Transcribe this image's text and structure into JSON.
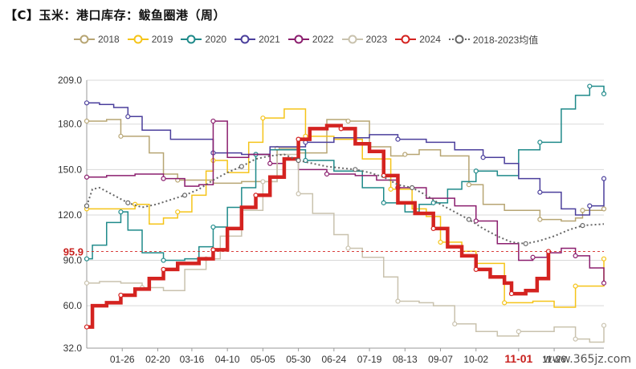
{
  "title": "【C】玉米：港口库存：鲅鱼圈港（周）",
  "watermark": "www.365jz.com",
  "chart_data": {
    "type": "line",
    "title": "【C】玉米：港口库存：鲅鱼圈港（周）",
    "xlabel": "",
    "ylabel": "",
    "ylim": [
      32.0,
      209.0
    ],
    "yticks": [
      "209.0",
      "180.0",
      "150.0",
      "120.0",
      "90.0",
      "60.0",
      "32.0"
    ],
    "ytick_values": [
      209,
      180,
      150,
      120,
      90,
      60,
      32
    ],
    "xticks": [
      "01-26",
      "02-20",
      "03-16",
      "04-10",
      "05-05",
      "05-30",
      "06-24",
      "07-19",
      "08-13",
      "09-07",
      "10-02",
      "11-01",
      "11-26"
    ],
    "highlight_xtick": "11-01",
    "last_value_label": "95.9",
    "last_value": 95.9,
    "grid": true,
    "legend_position": "top",
    "x_start": "01-01",
    "x_end": "12-31",
    "series": [
      {
        "name": "2018",
        "color": "#b7a573",
        "style": "step",
        "values": [
          [
            1,
            182
          ],
          [
            5,
            182
          ],
          [
            15,
            183
          ],
          [
            25,
            172
          ],
          [
            45,
            161
          ],
          [
            55,
            147
          ],
          [
            65,
            143
          ],
          [
            90,
            141
          ],
          [
            110,
            142
          ],
          [
            135,
            164
          ],
          [
            150,
            161
          ],
          [
            170,
            183
          ],
          [
            185,
            182
          ],
          [
            200,
            165
          ],
          [
            215,
            159
          ],
          [
            225,
            160
          ],
          [
            235,
            163
          ],
          [
            250,
            159
          ],
          [
            270,
            140
          ],
          [
            280,
            127
          ],
          [
            295,
            123
          ],
          [
            320,
            117
          ],
          [
            335,
            116
          ],
          [
            345,
            118
          ],
          [
            350,
            123
          ],
          [
            365,
            124
          ]
        ]
      },
      {
        "name": "2019",
        "color": "#f5c419",
        "style": "step",
        "values": [
          [
            1,
            124
          ],
          [
            10,
            124
          ],
          [
            25,
            124
          ],
          [
            35,
            127
          ],
          [
            45,
            114
          ],
          [
            55,
            118
          ],
          [
            65,
            122
          ],
          [
            75,
            133
          ],
          [
            85,
            149
          ],
          [
            90,
            156
          ],
          [
            100,
            148
          ],
          [
            115,
            168
          ],
          [
            125,
            184
          ],
          [
            140,
            190
          ],
          [
            148,
            190
          ],
          [
            155,
            172
          ],
          [
            175,
            170
          ],
          [
            195,
            157
          ],
          [
            215,
            137
          ],
          [
            230,
            124
          ],
          [
            240,
            119
          ],
          [
            250,
            102
          ],
          [
            265,
            96
          ],
          [
            275,
            88
          ],
          [
            295,
            62
          ],
          [
            315,
            63
          ],
          [
            330,
            59
          ],
          [
            345,
            73
          ],
          [
            365,
            91
          ]
        ]
      },
      {
        "name": "2020",
        "color": "#1f8a8a",
        "style": "step",
        "values": [
          [
            1,
            91
          ],
          [
            5,
            100
          ],
          [
            15,
            115
          ],
          [
            25,
            122
          ],
          [
            30,
            110
          ],
          [
            40,
            95
          ],
          [
            55,
            90
          ],
          [
            70,
            91
          ],
          [
            80,
            99
          ],
          [
            90,
            112
          ],
          [
            100,
            125
          ],
          [
            110,
            138
          ],
          [
            120,
            160
          ],
          [
            130,
            163
          ],
          [
            145,
            163
          ],
          [
            155,
            156
          ],
          [
            175,
            149
          ],
          [
            195,
            138
          ],
          [
            210,
            128
          ],
          [
            225,
            122
          ],
          [
            235,
            127
          ],
          [
            245,
            128
          ],
          [
            255,
            137
          ],
          [
            265,
            142
          ],
          [
            275,
            149
          ],
          [
            290,
            146
          ],
          [
            305,
            163
          ],
          [
            320,
            168
          ],
          [
            335,
            190
          ],
          [
            345,
            199
          ],
          [
            355,
            205
          ],
          [
            365,
            200
          ]
        ]
      },
      {
        "name": "2021",
        "color": "#4b3f9c",
        "style": "step",
        "values": [
          [
            1,
            194
          ],
          [
            10,
            193
          ],
          [
            20,
            191
          ],
          [
            30,
            185
          ],
          [
            40,
            176
          ],
          [
            60,
            170
          ],
          [
            90,
            161
          ],
          [
            110,
            160
          ],
          [
            130,
            165
          ],
          [
            155,
            168
          ],
          [
            175,
            171
          ],
          [
            200,
            173
          ],
          [
            220,
            170
          ],
          [
            240,
            168
          ],
          [
            260,
            163
          ],
          [
            280,
            158
          ],
          [
            295,
            154
          ],
          [
            305,
            144
          ],
          [
            320,
            135
          ],
          [
            335,
            124
          ],
          [
            345,
            120
          ],
          [
            355,
            126
          ],
          [
            365,
            144
          ]
        ]
      },
      {
        "name": "2022",
        "color": "#8b1e6e",
        "style": "step",
        "values": [
          [
            1,
            145
          ],
          [
            15,
            146
          ],
          [
            35,
            147
          ],
          [
            55,
            144
          ],
          [
            70,
            139
          ],
          [
            80,
            140
          ],
          [
            90,
            182
          ],
          [
            100,
            158
          ],
          [
            115,
            160
          ],
          [
            130,
            154
          ],
          [
            140,
            157
          ],
          [
            150,
            150
          ],
          [
            170,
            147
          ],
          [
            190,
            146
          ],
          [
            205,
            143
          ],
          [
            220,
            138
          ],
          [
            240,
            131
          ],
          [
            260,
            126
          ],
          [
            275,
            116
          ],
          [
            290,
            101
          ],
          [
            305,
            90
          ],
          [
            315,
            92
          ],
          [
            325,
            95
          ],
          [
            335,
            98
          ],
          [
            345,
            93
          ],
          [
            355,
            85
          ],
          [
            365,
            75
          ]
        ]
      },
      {
        "name": "2023",
        "color": "#c9c2ae",
        "style": "step",
        "values": [
          [
            1,
            75
          ],
          [
            10,
            76
          ],
          [
            25,
            75
          ],
          [
            40,
            72
          ],
          [
            55,
            70
          ],
          [
            70,
            84
          ],
          [
            85,
            91
          ],
          [
            95,
            106
          ],
          [
            110,
            123
          ],
          [
            125,
            142
          ],
          [
            135,
            160
          ],
          [
            145,
            160
          ],
          [
            150,
            134
          ],
          [
            160,
            121
          ],
          [
            175,
            107
          ],
          [
            185,
            98
          ],
          [
            195,
            92
          ],
          [
            210,
            79
          ],
          [
            220,
            63
          ],
          [
            235,
            62
          ],
          [
            245,
            60
          ],
          [
            260,
            48
          ],
          [
            275,
            43
          ],
          [
            290,
            40
          ],
          [
            305,
            43
          ],
          [
            320,
            43
          ],
          [
            330,
            46
          ],
          [
            345,
            38
          ],
          [
            355,
            36
          ],
          [
            365,
            47
          ]
        ]
      },
      {
        "name": "2024",
        "color": "#d42320",
        "style": "step",
        "bold": true,
        "values": [
          [
            1,
            46
          ],
          [
            5,
            60
          ],
          [
            15,
            62
          ],
          [
            25,
            67
          ],
          [
            35,
            71
          ],
          [
            45,
            78
          ],
          [
            55,
            84
          ],
          [
            65,
            88
          ],
          [
            80,
            91
          ],
          [
            90,
            97
          ],
          [
            100,
            111
          ],
          [
            110,
            125
          ],
          [
            120,
            133
          ],
          [
            130,
            145
          ],
          [
            140,
            157
          ],
          [
            150,
            170
          ],
          [
            158,
            177
          ],
          [
            170,
            179
          ],
          [
            180,
            177
          ],
          [
            190,
            167
          ],
          [
            200,
            162
          ],
          [
            210,
            146
          ],
          [
            220,
            128
          ],
          [
            232,
            121
          ],
          [
            245,
            111
          ],
          [
            255,
            99
          ],
          [
            265,
            93
          ],
          [
            275,
            84
          ],
          [
            285,
            79
          ],
          [
            295,
            75
          ],
          [
            300,
            68
          ],
          [
            310,
            70
          ],
          [
            318,
            78
          ],
          [
            326,
            95.9
          ]
        ]
      },
      {
        "name": "2018-2023均值",
        "color": "#666666",
        "style": "dotted",
        "values": [
          [
            1,
            126
          ],
          [
            5,
            137
          ],
          [
            10,
            138
          ],
          [
            20,
            133
          ],
          [
            30,
            128
          ],
          [
            40,
            125
          ],
          [
            50,
            127
          ],
          [
            60,
            130
          ],
          [
            70,
            133
          ],
          [
            80,
            137
          ],
          [
            90,
            143
          ],
          [
            100,
            148
          ],
          [
            110,
            152
          ],
          [
            120,
            157
          ],
          [
            130,
            159
          ],
          [
            140,
            160
          ],
          [
            150,
            156
          ],
          [
            160,
            154
          ],
          [
            170,
            152
          ],
          [
            180,
            151
          ],
          [
            190,
            150
          ],
          [
            200,
            148
          ],
          [
            210,
            145
          ],
          [
            220,
            140
          ],
          [
            230,
            138
          ],
          [
            240,
            133
          ],
          [
            250,
            127
          ],
          [
            260,
            122
          ],
          [
            270,
            117
          ],
          [
            280,
            111
          ],
          [
            290,
            106
          ],
          [
            300,
            102
          ],
          [
            310,
            101
          ],
          [
            320,
            103
          ],
          [
            330,
            106
          ],
          [
            340,
            110
          ],
          [
            350,
            113
          ],
          [
            365,
            114
          ]
        ]
      }
    ]
  }
}
